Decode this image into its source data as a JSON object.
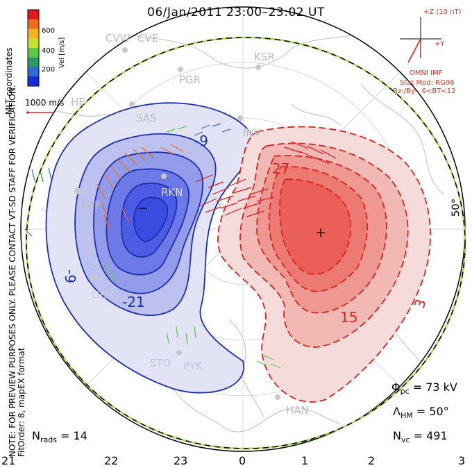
{
  "title": "06/Jan/2011 23:00–23:02 UT",
  "notes": {
    "preview": "NOTE: FOR PREVIEW PURPOSES ONLY. PLEASE CONTACT VT-SD STAFF FOR VERIFICATION.",
    "fit": "FitOrder: 8, mapEX format",
    "coords": "MLT coordinates"
  },
  "colorbar": {
    "label": "Vel [m/s]",
    "ticks": [
      "600",
      "400",
      "200"
    ],
    "colors": [
      "#e0181a",
      "#f06a1e",
      "#f7b21e",
      "#c8e030",
      "#5cc84a",
      "#2b9a66",
      "#2e6cd0",
      "#1a2bd8"
    ]
  },
  "scale_vector": {
    "label": "1000 m/s",
    "color": "#e02020"
  },
  "imf": {
    "z_label": "+Z (10 nT)",
    "y_label": "+Y",
    "omni": "OMNI IMF",
    "stat_mod": "Stat Mod: RG96",
    "condition": "Bz-/By-, 6<BT<12",
    "color": "#e0301e"
  },
  "stations": [
    "CVW",
    "CVE",
    "KSR",
    "PGR",
    "SAS",
    "INV",
    "RKN",
    "KAP",
    "GBR",
    "STO",
    "PYK",
    "HAN",
    "HE"
  ],
  "contour_labels": {
    "negative": [
      "-9",
      "-9",
      "-21"
    ],
    "positive": [
      "27",
      "15",
      "3"
    ]
  },
  "stats": {
    "phi_pc": "Φpc = 73 kV",
    "lambda_hm": "ΛHM = 50°",
    "n_vc": "Nvc = 491",
    "n_rads": "Nrads = 14"
  },
  "stat_parts": {
    "phi_sym": "Φ",
    "phi_sub": "pc",
    "phi_val": " = 73 kV",
    "lam_sym": "Λ",
    "lam_sub": "HM",
    "lam_val": " = 50°",
    "nvc_sym": "N",
    "nvc_sub": "vc",
    "nvc_val": " = 491",
    "nrads_sym": "N",
    "nrads_sub": "rads",
    "nrads_val": " = 14"
  },
  "latitude_label": "50°",
  "mlt_labels": [
    "21",
    "22",
    "23",
    "0",
    "1",
    "2",
    "3"
  ],
  "colors": {
    "negative_fill": "#2040e0",
    "positive_fill": "#e83a30",
    "negative_line": "#1a2fb0",
    "positive_line": "#d8251c",
    "hmb": "#a8d85a",
    "land": "#c8c8c8"
  }
}
